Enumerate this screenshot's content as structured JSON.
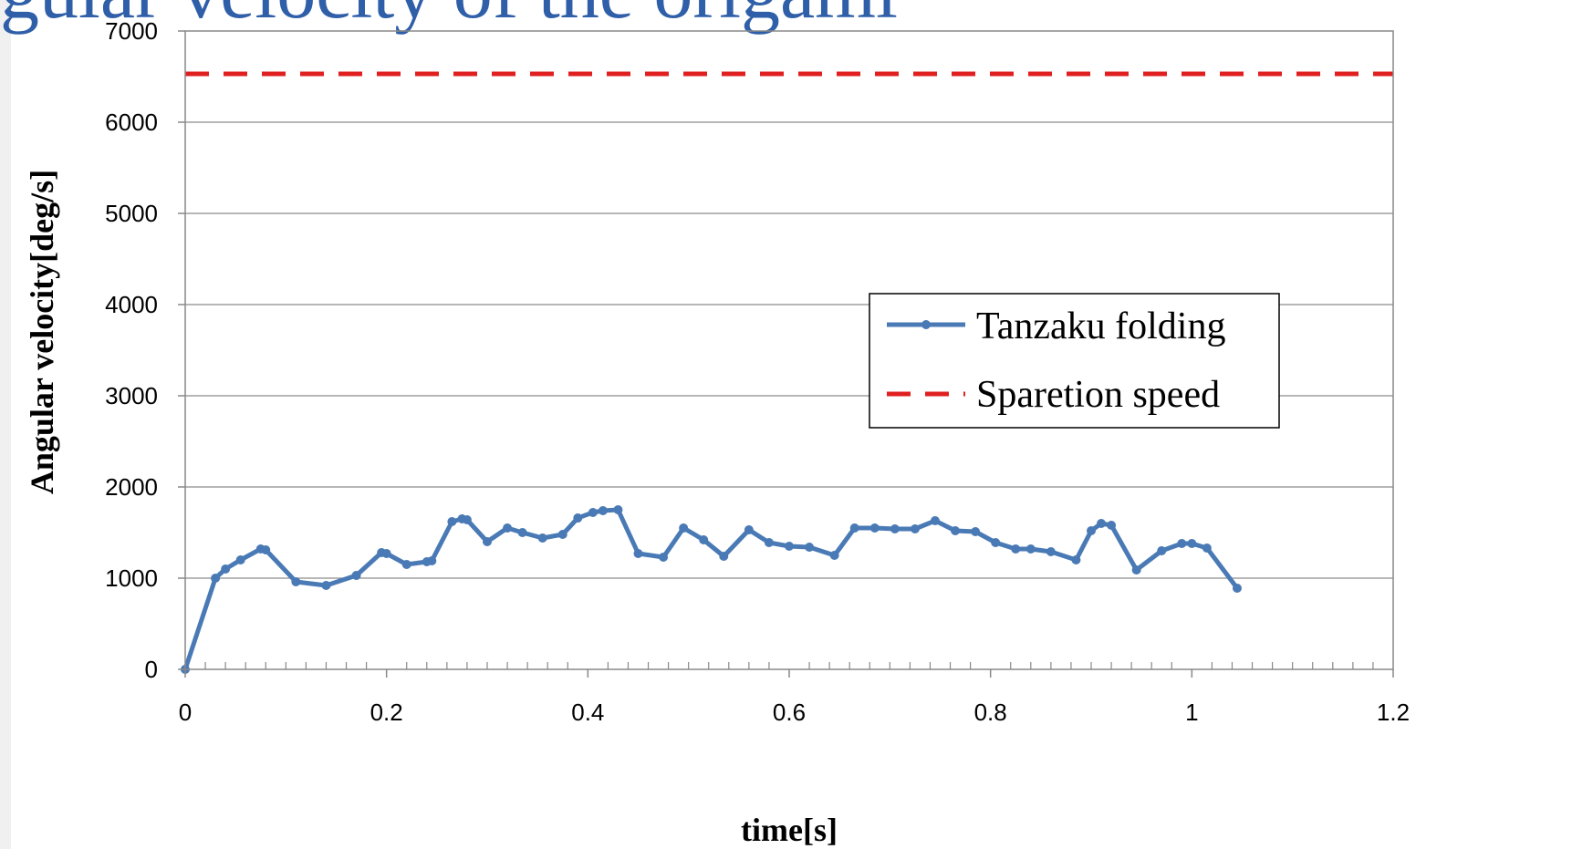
{
  "figure": {
    "top_text": "gular velocity of the origami"
  },
  "chart_data": {
    "type": "line",
    "title": "",
    "xlabel": "time[s]",
    "ylabel": "Angular  velocity[deg/s]",
    "xlim": [
      0,
      1.2
    ],
    "ylim": [
      0,
      7000
    ],
    "xticks": [
      0,
      0.2,
      0.4,
      0.6,
      0.8,
      1,
      1.2
    ],
    "xtick_labels": [
      "0",
      "0.2",
      "0.4",
      "0.6",
      "0.8",
      "1",
      "1.2"
    ],
    "yticks": [
      0,
      1000,
      2000,
      3000,
      4000,
      5000,
      6000,
      7000
    ],
    "ytick_labels": [
      "0",
      "1000",
      "2000",
      "3000",
      "4000",
      "5000",
      "6000",
      "7000"
    ],
    "grid": "horizontal",
    "legend_position": "right",
    "series": [
      {
        "name": "Tanzaku folding",
        "color": "#4a7ab5",
        "style": "solid-with-markers",
        "x": [
          0.0,
          0.03,
          0.04,
          0.055,
          0.075,
          0.08,
          0.11,
          0.14,
          0.17,
          0.195,
          0.2,
          0.22,
          0.24,
          0.245,
          0.265,
          0.275,
          0.28,
          0.3,
          0.32,
          0.335,
          0.355,
          0.375,
          0.39,
          0.405,
          0.415,
          0.43,
          0.45,
          0.475,
          0.495,
          0.515,
          0.535,
          0.56,
          0.58,
          0.6,
          0.62,
          0.645,
          0.665,
          0.685,
          0.705,
          0.725,
          0.745,
          0.765,
          0.785,
          0.805,
          0.825,
          0.84,
          0.86,
          0.885,
          0.9,
          0.91,
          0.92,
          0.945,
          0.97,
          0.99,
          1.0,
          1.015,
          1.045
        ],
        "y": [
          0,
          1000,
          1100,
          1200,
          1320,
          1310,
          960,
          920,
          1030,
          1280,
          1270,
          1150,
          1180,
          1190,
          1620,
          1650,
          1640,
          1400,
          1550,
          1500,
          1440,
          1480,
          1660,
          1720,
          1740,
          1750,
          1270,
          1230,
          1550,
          1420,
          1240,
          1530,
          1390,
          1350,
          1340,
          1250,
          1550,
          1550,
          1540,
          1540,
          1630,
          1520,
          1510,
          1390,
          1320,
          1320,
          1290,
          1200,
          1520,
          1600,
          1580,
          1090,
          1300,
          1380,
          1380,
          1330,
          890
        ]
      },
      {
        "name": "Sparetion speed",
        "color": "#e02020",
        "style": "dashed",
        "x": [
          0,
          1.2
        ],
        "y": [
          6530,
          6530
        ]
      }
    ]
  }
}
